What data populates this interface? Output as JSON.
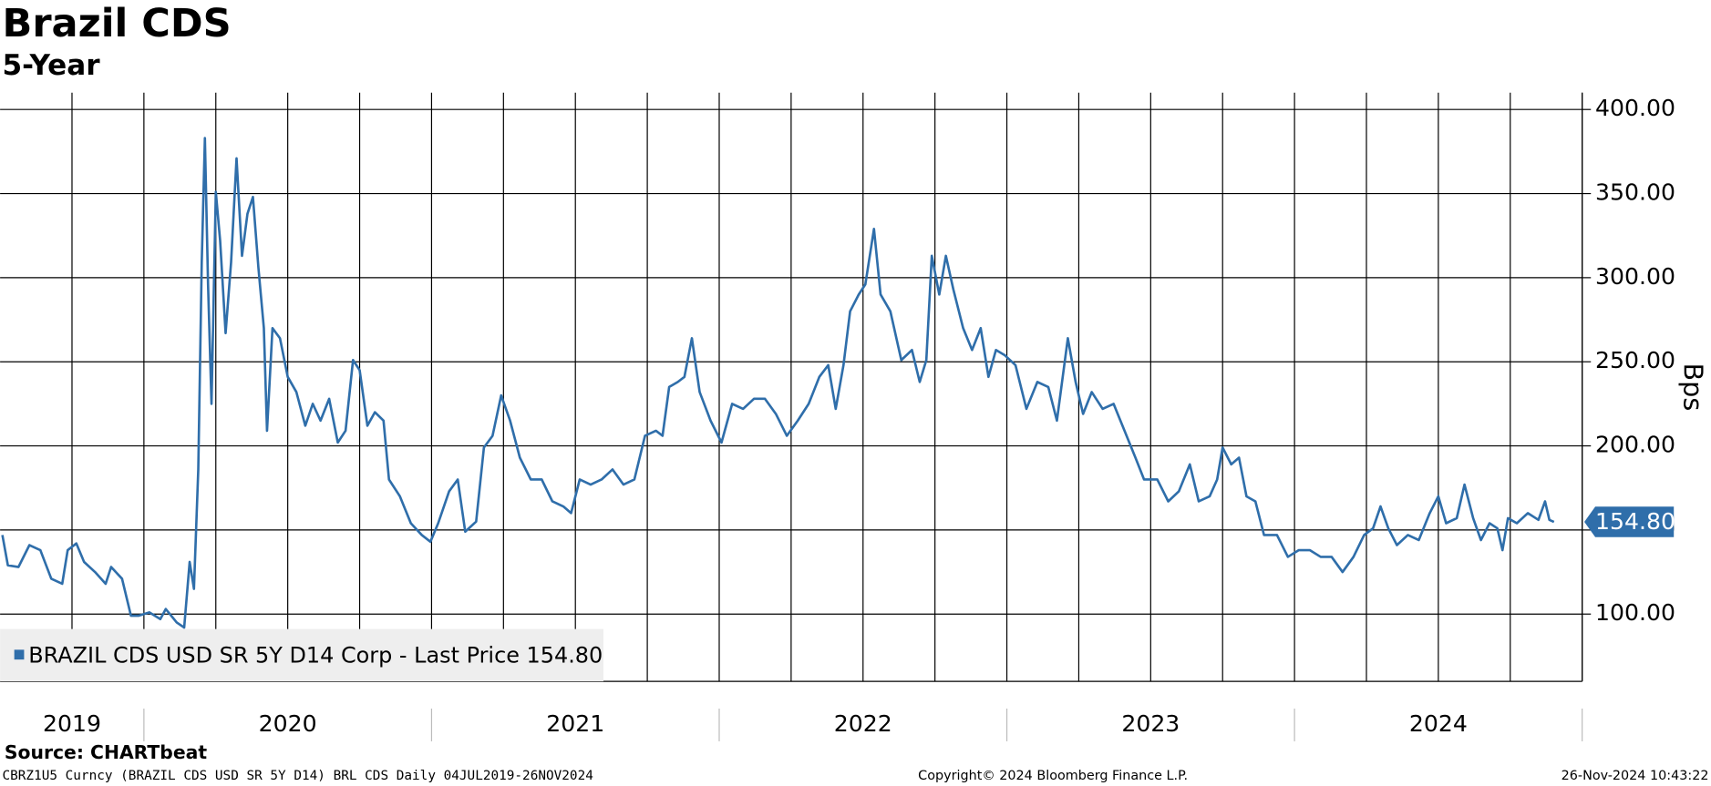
{
  "chart_data": {
    "type": "line",
    "title": "Brazil CDS",
    "subtitle": "5-Year",
    "y_label": "Bps",
    "x_labels": [
      "2019",
      "2020",
      "2021",
      "2022",
      "2023",
      "2024"
    ],
    "xlim": [
      2019.5,
      2025
    ],
    "xticks": [
      2019.75,
      2020,
      2020.25,
      2020.5,
      2020.75,
      2021,
      2021.25,
      2021.5,
      2021.75,
      2022,
      2022.25,
      2022.5,
      2022.75,
      2023,
      2023.25,
      2023.5,
      2023.75,
      2024,
      2024.25,
      2024.5,
      2024.75,
      2025
    ],
    "ylim": [
      60,
      410
    ],
    "yticks": [
      {
        "value": 100,
        "label": "100.00"
      },
      {
        "value": 150,
        "label": "150.00"
      },
      {
        "value": 200,
        "label": "200.00"
      },
      {
        "value": 250,
        "label": "250.00"
      },
      {
        "value": 300,
        "label": "300.00"
      },
      {
        "value": 350,
        "label": "350.00"
      },
      {
        "value": 400,
        "label": "400.00"
      }
    ],
    "grid": true,
    "legend": "bottom-left",
    "series": [
      {
        "name": "BRAZIL CDS USD SR 5Y D14 Corp - Last Price 154.80",
        "color": "#2f6eaa",
        "last_value_label": "154.80",
        "x": [
          2019.508,
          2019.527,
          2019.564,
          2019.602,
          2019.64,
          2019.678,
          2019.716,
          2019.735,
          2019.765,
          2019.792,
          2019.83,
          2019.867,
          2019.886,
          2019.924,
          2019.955,
          2019.981,
          2020.019,
          2020.057,
          2020.076,
          2020.114,
          2020.14,
          2020.159,
          2020.174,
          2020.189,
          2020.201,
          2020.212,
          2020.223,
          2020.235,
          2020.25,
          2020.265,
          2020.284,
          2020.303,
          2020.322,
          2020.341,
          2020.36,
          2020.379,
          2020.398,
          2020.417,
          2020.428,
          2020.447,
          2020.473,
          2020.5,
          2020.53,
          2020.561,
          2020.587,
          2020.614,
          2020.644,
          2020.674,
          2020.701,
          2020.727,
          2020.75,
          2020.777,
          2020.803,
          2020.833,
          2020.852,
          2020.89,
          2020.928,
          2020.966,
          2020.996,
          2021.023,
          2021.061,
          2021.091,
          2021.117,
          2021.155,
          2021.182,
          2021.212,
          2021.242,
          2021.273,
          2021.307,
          2021.345,
          2021.383,
          2021.42,
          2021.458,
          2021.485,
          2021.515,
          2021.553,
          2021.591,
          2021.629,
          2021.667,
          2021.705,
          2021.742,
          2021.78,
          2021.803,
          2021.826,
          2021.856,
          2021.879,
          2021.905,
          2021.932,
          2021.97,
          2022.008,
          2022.045,
          2022.083,
          2022.121,
          2022.159,
          2022.197,
          2022.235,
          2022.273,
          2022.311,
          2022.348,
          2022.379,
          2022.405,
          2022.432,
          2022.455,
          2022.485,
          2022.508,
          2022.538,
          2022.561,
          2022.595,
          2022.633,
          2022.67,
          2022.697,
          2022.72,
          2022.739,
          2022.765,
          2022.788,
          2022.814,
          2022.848,
          2022.879,
          2022.909,
          2022.936,
          2022.962,
          2022.992,
          2023.03,
          2023.068,
          2023.106,
          2023.144,
          2023.174,
          2023.212,
          2023.239,
          2023.265,
          2023.295,
          2023.333,
          2023.371,
          2023.409,
          2023.447,
          2023.477,
          2023.523,
          2023.561,
          2023.598,
          2023.636,
          2023.667,
          2023.705,
          2023.731,
          2023.75,
          2023.78,
          2023.807,
          2023.833,
          2023.864,
          2023.894,
          2023.939,
          2023.977,
          2024.015,
          2024.053,
          2024.091,
          2024.129,
          2024.167,
          2024.205,
          2024.242,
          2024.273,
          2024.299,
          2024.326,
          2024.356,
          2024.394,
          2024.432,
          2024.47,
          2024.5,
          2024.527,
          2024.564,
          2024.591,
          2024.621,
          2024.648,
          2024.678,
          2024.705,
          2024.723,
          2024.742,
          2024.773,
          2024.811,
          2024.848,
          2024.871,
          2024.886,
          2024.902
        ],
        "values": [
          147,
          129,
          128,
          141,
          138,
          121,
          118,
          138,
          142,
          131,
          125,
          118,
          128,
          121,
          99,
          99,
          101,
          97,
          103,
          95,
          92,
          131,
          115,
          186,
          309,
          383,
          296,
          225,
          351,
          322,
          267,
          309,
          371,
          313,
          338,
          348,
          306,
          270,
          209,
          270,
          264,
          241,
          232,
          212,
          225,
          215,
          228,
          202,
          209,
          251,
          245,
          212,
          220,
          215,
          180,
          170,
          154,
          147,
          143,
          154,
          173,
          180,
          149,
          155,
          199,
          206,
          230,
          215,
          193,
          180,
          180,
          167,
          164,
          160,
          180,
          177,
          180,
          186,
          177,
          180,
          206,
          209,
          206,
          235,
          238,
          241,
          264,
          232,
          215,
          202,
          225,
          222,
          228,
          228,
          219,
          206,
          215,
          225,
          241,
          248,
          222,
          248,
          280,
          290,
          296,
          329,
          290,
          280,
          251,
          257,
          238,
          251,
          313,
          290,
          313,
          293,
          270,
          257,
          270,
          241,
          257,
          254,
          248,
          222,
          238,
          235,
          215,
          264,
          238,
          219,
          232,
          222,
          225,
          209,
          193,
          180,
          180,
          167,
          173,
          189,
          167,
          170,
          180,
          199,
          189,
          193,
          170,
          167,
          147,
          147,
          134,
          138,
          138,
          134,
          134,
          125,
          134,
          147,
          151,
          164,
          151,
          141,
          147,
          144,
          160,
          170,
          154,
          157,
          177,
          157,
          144,
          154,
          151,
          138,
          157,
          154,
          160,
          156,
          167,
          156,
          154.8
        ]
      }
    ],
    "source": "Source: CHARTbeat",
    "footer_left": "CBRZ1U5 Curncy (BRAZIL CDS USD SR 5Y D14) BRL CDS  Daily 04JUL2019-26NOV2024",
    "footer_center": "Copyright© 2024 Bloomberg Finance L.P.",
    "footer_right": "26-Nov-2024 10:43:22"
  }
}
